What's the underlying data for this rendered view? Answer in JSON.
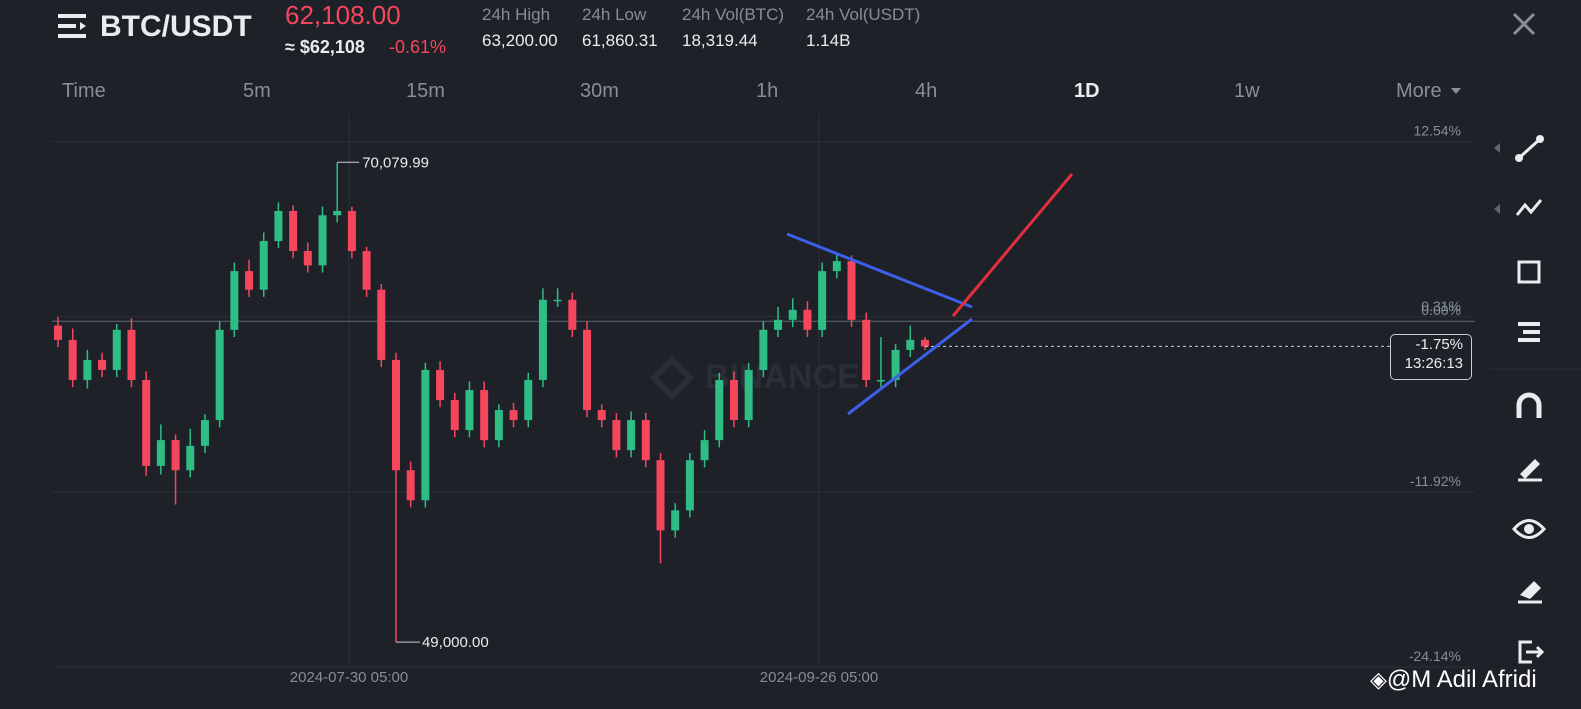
{
  "header": {
    "symbol": "BTC/USDT",
    "price": "62,108.00",
    "approx": "≈ $62,108",
    "change": "-0.61%",
    "stats": [
      {
        "label": "24h High",
        "value": "63,200.00"
      },
      {
        "label": "24h Low",
        "value": "61,860.31"
      },
      {
        "label": "24h Vol(BTC)",
        "value": "18,319.44"
      },
      {
        "label": "24h Vol(USDT)",
        "value": "1.14B"
      }
    ]
  },
  "tabs": [
    "Time",
    "5m",
    "15m",
    "30m",
    "1h",
    "4h",
    "1D",
    "1w",
    "More"
  ],
  "watermark": "BINANCE",
  "credit": "@M Adil Afridi",
  "chart_data": {
    "type": "candlestick",
    "open": [
      -0.3,
      -1.3,
      -4.1,
      -2.7,
      -3.4,
      -0.6,
      -4.1,
      -10.1,
      -8.3,
      -10.4,
      -8.7,
      -6.9,
      -0.6,
      3.5,
      2.2,
      5.6,
      7.7,
      4.9,
      3.9,
      7.4,
      7.7,
      4.9,
      2.2,
      -2.7,
      -10.4,
      -12.5,
      -3.4,
      -5.5,
      -7.6,
      -4.8,
      -8.3,
      -6.2,
      -6.9,
      -4.1,
      1.5,
      1.5,
      -0.6,
      -6.2,
      -6.9,
      -9.0,
      -6.9,
      -9.7,
      -14.6,
      -13.2,
      -9.7,
      -8.3,
      -4.1,
      -6.9,
      -3.4,
      -0.6,
      0.1,
      0.8,
      -0.6,
      3.5,
      4.2,
      0.1,
      -4.1,
      -4.1,
      -2.0,
      -1.3
    ],
    "high": [
      0.3,
      -0.5,
      -2.0,
      -2.2,
      -0.2,
      0.2,
      -3.5,
      -7.2,
      -7.9,
      -7.5,
      -6.5,
      0.0,
      4.1,
      4.3,
      6.2,
      8.3,
      8.1,
      5.5,
      8.0,
      11.1,
      8.0,
      5.2,
      2.6,
      -2.2,
      -9.8,
      -2.9,
      -2.8,
      -5.0,
      -4.2,
      -4.2,
      -5.8,
      -5.7,
      -3.6,
      2.3,
      2.3,
      2.0,
      0.0,
      -5.8,
      -6.4,
      -6.3,
      -6.4,
      -9.2,
      -12.7,
      -9.2,
      -7.6,
      -3.6,
      -3.5,
      -2.9,
      0.0,
      1.0,
      1.6,
      1.4,
      4.1,
      4.8,
      4.6,
      0.6,
      -1.1,
      -1.6,
      -0.3,
      -1.1
    ],
    "low": [
      -1.8,
      -4.6,
      -4.7,
      -3.9,
      -3.9,
      -4.6,
      -10.8,
      -10.7,
      -12.8,
      -10.9,
      -9.2,
      -7.4,
      -1.1,
      1.7,
      1.7,
      5.1,
      4.4,
      3.4,
      3.4,
      6.9,
      4.4,
      1.7,
      -3.2,
      -22.4,
      -13.0,
      -13.0,
      -6.0,
      -8.1,
      -8.1,
      -8.8,
      -8.8,
      -7.4,
      -7.4,
      -4.6,
      1.0,
      -1.1,
      -6.7,
      -7.4,
      -9.5,
      -9.5,
      -10.2,
      -16.9,
      -15.1,
      -13.7,
      -10.2,
      -8.8,
      -7.4,
      -7.4,
      -3.9,
      -1.1,
      -0.4,
      -1.1,
      -1.1,
      3.0,
      -0.4,
      -4.6,
      -4.6,
      -4.6,
      -2.5,
      -2.0
    ],
    "close": [
      -1.3,
      -4.1,
      -2.7,
      -3.4,
      -0.6,
      -4.1,
      -10.1,
      -8.3,
      -10.4,
      -8.7,
      -6.9,
      -0.6,
      3.5,
      2.2,
      5.6,
      7.7,
      4.9,
      3.9,
      7.4,
      7.7,
      4.9,
      2.2,
      -2.7,
      -10.4,
      -12.5,
      -3.4,
      -5.5,
      -7.6,
      -4.8,
      -8.3,
      -6.2,
      -6.9,
      -4.1,
      1.5,
      1.5,
      -0.6,
      -6.2,
      -6.9,
      -9.0,
      -6.9,
      -9.7,
      -14.6,
      -13.2,
      -9.7,
      -8.3,
      -4.1,
      -6.9,
      -3.4,
      -0.6,
      0.1,
      0.8,
      -0.6,
      3.5,
      4.2,
      0.1,
      -4.1,
      -4.1,
      -2.0,
      -1.3,
      -1.75
    ],
    "up_color": "#2ebd85",
    "down_color": "#f6465d",
    "ylim": [
      -24.14,
      14.4
    ],
    "yticks": [
      {
        "value": 12.54,
        "label": "12.54%"
      },
      {
        "value": 0.31,
        "label": "0.31%"
      },
      {
        "value": 0,
        "label": "0.00%"
      },
      {
        "value": -11.92,
        "label": "-11.92%"
      },
      {
        "value": -24.14,
        "label": "-24.14%"
      }
    ],
    "x_labels": [
      "2024-07-30 05:00",
      "2024-09-26 05:00"
    ],
    "high_label": "70,079.99",
    "low_label": "49,000.00",
    "last_label": {
      "value": -1.75,
      "label": "-1.75%"
    },
    "countdown": "13:26:13",
    "grid": true
  }
}
